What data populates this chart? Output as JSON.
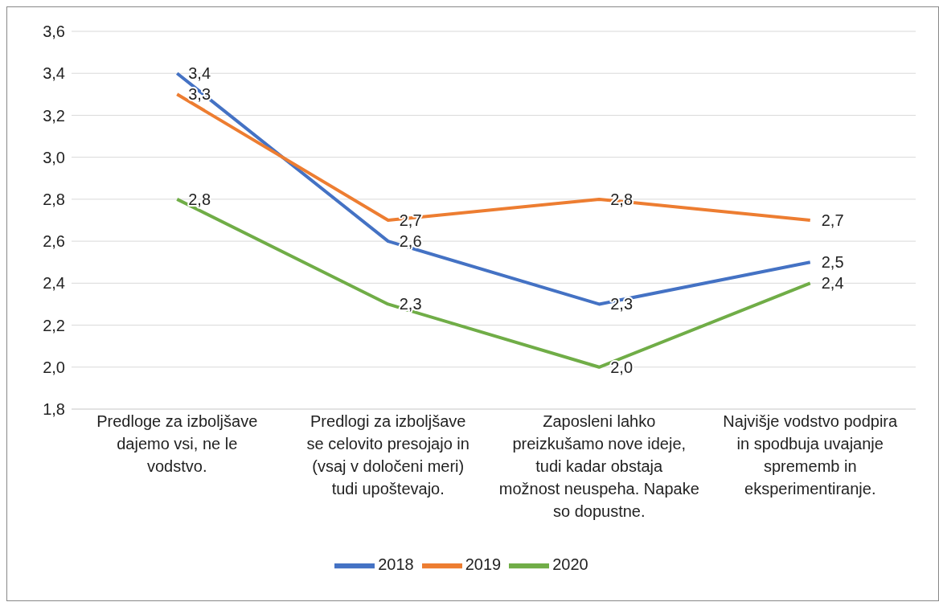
{
  "chart_data": {
    "type": "line",
    "categories": [
      "Predloge za izboljšave dajemo vsi, ne le vodstvo.",
      "Predlogi za izboljšave se celovito presojajo in (vsaj v določeni meri) tudi upoštevajo.",
      "Zaposleni lahko preizkušamo nove ideje, tudi kadar obstaja možnost neuspeha. Napake so dopustne.",
      "Najvišje vodstvo podpira in spodbuja uvajanje sprememb in eksperimentiranje."
    ],
    "series": [
      {
        "name": "2018",
        "color": "#4472c4",
        "values": [
          3.4,
          2.6,
          2.3,
          2.5
        ],
        "value_labels": [
          "3,4",
          "2,6",
          "2,3",
          "2,5"
        ]
      },
      {
        "name": "2019",
        "color": "#ed7d31",
        "values": [
          3.3,
          2.7,
          2.8,
          2.7
        ],
        "value_labels": [
          "3,3",
          "2,7",
          "2,8",
          "2,7"
        ]
      },
      {
        "name": "2020",
        "color": "#70ad47",
        "values": [
          2.8,
          2.3,
          2.0,
          2.4
        ],
        "value_labels": [
          "2,8",
          "2,3",
          "2,0",
          "2,4"
        ]
      }
    ],
    "ylim": [
      1.8,
      3.6
    ],
    "yticks": [
      {
        "value": 1.8,
        "label": "1,8"
      },
      {
        "value": 2.0,
        "label": "2,0"
      },
      {
        "value": 2.2,
        "label": "2,2"
      },
      {
        "value": 2.4,
        "label": "2,4"
      },
      {
        "value": 2.6,
        "label": "2,6"
      },
      {
        "value": 2.8,
        "label": "2,8"
      },
      {
        "value": 3.0,
        "label": "3,0"
      },
      {
        "value": 3.2,
        "label": "3,2"
      },
      {
        "value": 3.4,
        "label": "3,4"
      },
      {
        "value": 3.6,
        "label": "3,6"
      }
    ],
    "grid": "y",
    "legend": "bottom",
    "marker": "none",
    "line_style": "solid"
  }
}
